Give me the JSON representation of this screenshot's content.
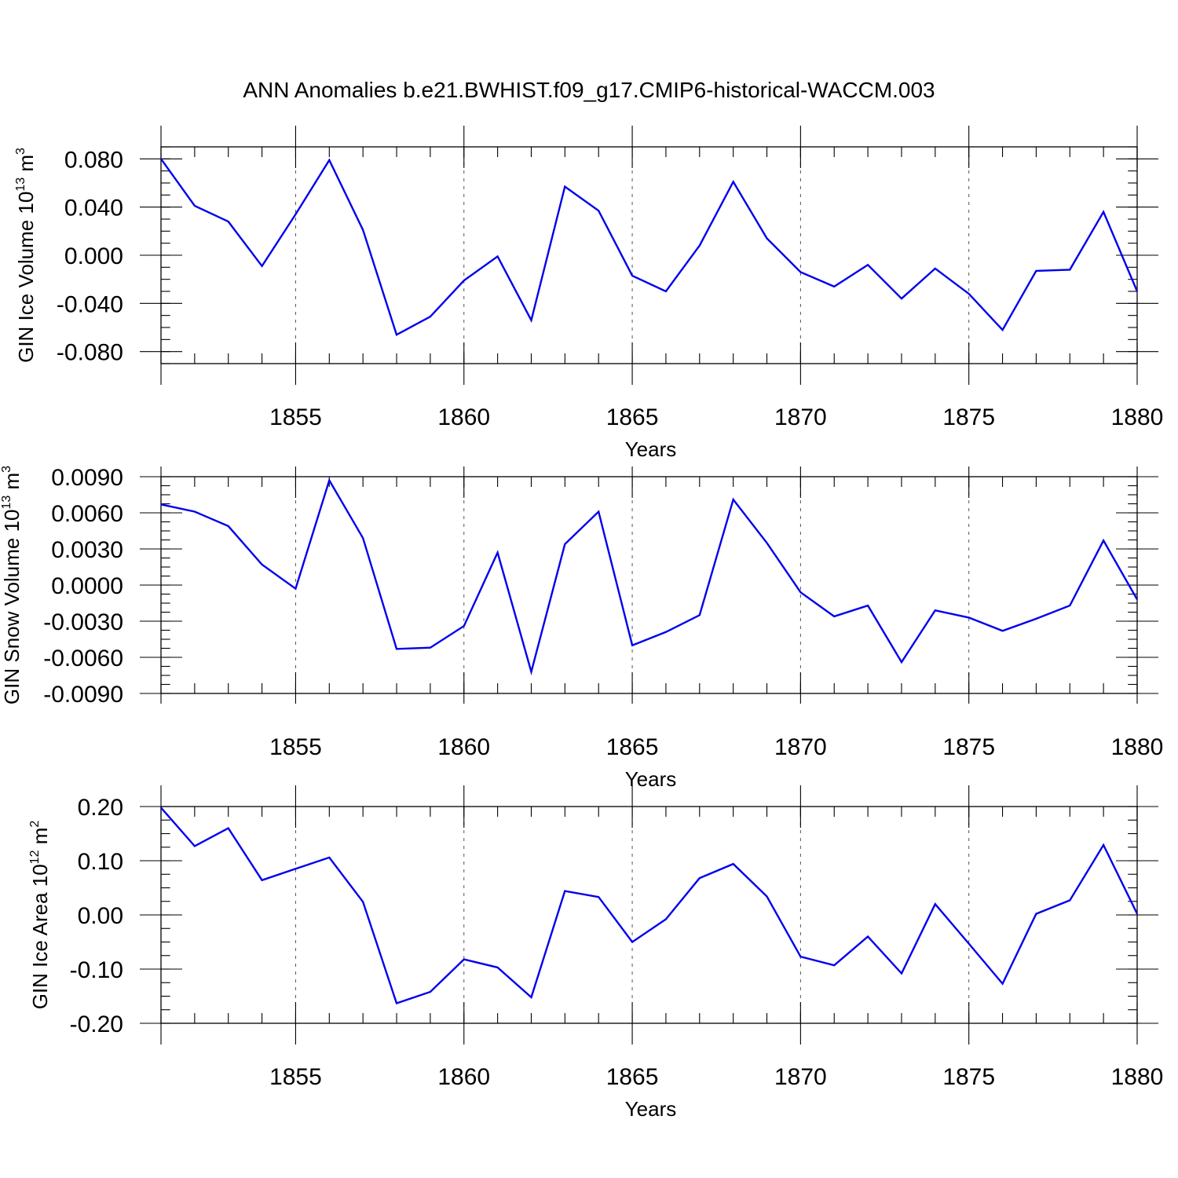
{
  "title": "ANN Anomalies b.e21.BWHIST.f09_g17.CMIP6-historical-WACCM.003",
  "line_color": "#0000ee",
  "chart_data": [
    {
      "type": "line",
      "xlabel": "Years",
      "ylabel": {
        "text": "GIN Ice Volume 10",
        "sup": "13",
        "unit": " m",
        "unit_sup": "3"
      },
      "xlim": [
        1851,
        1880
      ],
      "ylim": [
        -0.09,
        0.09
      ],
      "xticks": [
        1855,
        1860,
        1865,
        1870,
        1875,
        1880
      ],
      "xtick_labels": [
        "1855",
        "1860",
        "1865",
        "1870",
        "1875",
        "1880"
      ],
      "yticks": [
        0.08,
        0.04,
        0.0,
        -0.04,
        -0.08
      ],
      "ytick_labels": [
        "0.080",
        "0.040",
        "0.000",
        "-0.040",
        "-0.080"
      ],
      "grid": "x-dashed",
      "x": [
        1851,
        1852,
        1853,
        1854,
        1855,
        1856,
        1857,
        1858,
        1859,
        1860,
        1861,
        1862,
        1863,
        1864,
        1865,
        1866,
        1867,
        1868,
        1869,
        1870,
        1871,
        1872,
        1873,
        1874,
        1875,
        1876,
        1877,
        1878,
        1879,
        1880
      ],
      "y": [
        0.08,
        0.041,
        0.028,
        -0.009,
        0.034,
        0.079,
        0.021,
        -0.066,
        -0.051,
        -0.021,
        -0.001,
        -0.054,
        0.057,
        0.037,
        -0.017,
        -0.03,
        0.008,
        0.061,
        0.014,
        -0.014,
        -0.026,
        -0.008,
        -0.036,
        -0.011,
        -0.032,
        -0.062,
        -0.013,
        -0.012,
        0.036,
        -0.03
      ]
    },
    {
      "type": "line",
      "xlabel": "Years",
      "ylabel": {
        "text": "GIN Snow Volume 10",
        "sup": "13",
        "unit": " m",
        "unit_sup": "3"
      },
      "xlim": [
        1851,
        1880
      ],
      "ylim": [
        -0.009,
        0.009
      ],
      "xticks": [
        1855,
        1860,
        1865,
        1870,
        1875,
        1880
      ],
      "xtick_labels": [
        "1855",
        "1860",
        "1865",
        "1870",
        "1875",
        "1880"
      ],
      "yticks": [
        0.009,
        0.006,
        0.003,
        0.0,
        -0.003,
        -0.006,
        -0.009
      ],
      "ytick_labels": [
        "0.0090",
        "0.0060",
        "0.0030",
        "0.0000",
        "-0.0030",
        "-0.0060",
        "-0.0090"
      ],
      "grid": "x-dashed",
      "x": [
        1851,
        1852,
        1853,
        1854,
        1855,
        1856,
        1857,
        1858,
        1859,
        1860,
        1861,
        1862,
        1863,
        1864,
        1865,
        1866,
        1867,
        1868,
        1869,
        1870,
        1871,
        1872,
        1873,
        1874,
        1875,
        1876,
        1877,
        1878,
        1879,
        1880
      ],
      "y": [
        0.0067,
        0.0061,
        0.0049,
        0.0017,
        -0.0003,
        0.0087,
        0.0039,
        -0.0053,
        -0.0052,
        -0.0034,
        0.0027,
        -0.0072,
        0.0034,
        0.0061,
        -0.005,
        -0.0039,
        -0.0025,
        0.0071,
        0.0035,
        -0.0006,
        -0.0026,
        -0.0017,
        -0.0064,
        -0.0021,
        -0.0027,
        -0.0038,
        -0.0028,
        -0.0017,
        0.0037,
        -0.0012
      ]
    },
    {
      "type": "line",
      "xlabel": "Years",
      "ylabel": {
        "text": "GIN Ice Area 10",
        "sup": "12",
        "unit": " m",
        "unit_sup": "2"
      },
      "xlim": [
        1851,
        1880
      ],
      "ylim": [
        -0.2,
        0.2
      ],
      "xticks": [
        1855,
        1860,
        1865,
        1870,
        1875,
        1880
      ],
      "xtick_labels": [
        "1855",
        "1860",
        "1865",
        "1870",
        "1875",
        "1880"
      ],
      "yticks": [
        0.2,
        0.1,
        0.0,
        -0.1,
        -0.2
      ],
      "ytick_labels": [
        "0.20",
        "0.10",
        "0.00",
        "-0.10",
        "-0.20"
      ],
      "grid": "x-dashed",
      "x": [
        1851,
        1852,
        1853,
        1854,
        1855,
        1856,
        1857,
        1858,
        1859,
        1860,
        1861,
        1862,
        1863,
        1864,
        1865,
        1866,
        1867,
        1868,
        1869,
        1870,
        1871,
        1872,
        1873,
        1874,
        1875,
        1876,
        1877,
        1878,
        1879,
        1880
      ],
      "y": [
        0.198,
        0.127,
        0.16,
        0.064,
        0.085,
        0.106,
        0.024,
        -0.163,
        -0.142,
        -0.082,
        -0.097,
        -0.152,
        0.044,
        0.033,
        -0.05,
        -0.008,
        0.068,
        0.094,
        0.034,
        -0.077,
        -0.093,
        -0.04,
        -0.108,
        0.02,
        -0.053,
        -0.127,
        0.002,
        0.027,
        0.129,
        0.002
      ]
    }
  ]
}
